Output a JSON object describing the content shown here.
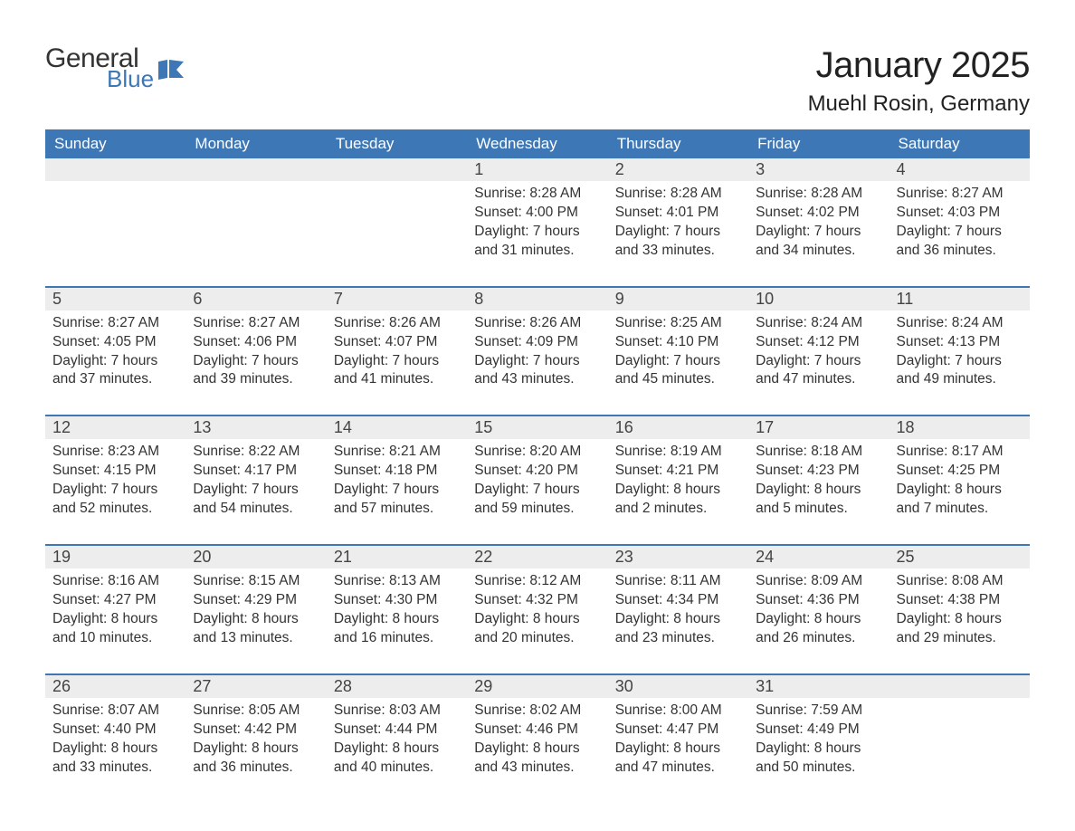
{
  "colors": {
    "header_bg": "#3d77b6",
    "header_text": "#ffffff",
    "daynum_bg": "#ededed",
    "week_border": "#3d77b6",
    "body_text": "#333333",
    "logo_blue": "#3d77b6",
    "background": "#ffffff"
  },
  "typography": {
    "month_title_size": 40,
    "location_size": 24,
    "day_header_size": 17,
    "daynum_size": 18,
    "cell_text_size": 15.5,
    "font_family": "Arial"
  },
  "logo": {
    "line1": "General",
    "line2": "Blue"
  },
  "title": {
    "month": "January 2025",
    "location": "Muehl Rosin, Germany"
  },
  "day_headers": [
    "Sunday",
    "Monday",
    "Tuesday",
    "Wednesday",
    "Thursday",
    "Friday",
    "Saturday"
  ],
  "weeks": [
    [
      {
        "n": "",
        "l1": "",
        "l2": "",
        "l3": "",
        "l4": ""
      },
      {
        "n": "",
        "l1": "",
        "l2": "",
        "l3": "",
        "l4": ""
      },
      {
        "n": "",
        "l1": "",
        "l2": "",
        "l3": "",
        "l4": ""
      },
      {
        "n": "1",
        "l1": "Sunrise: 8:28 AM",
        "l2": "Sunset: 4:00 PM",
        "l3": "Daylight: 7 hours",
        "l4": "and 31 minutes."
      },
      {
        "n": "2",
        "l1": "Sunrise: 8:28 AM",
        "l2": "Sunset: 4:01 PM",
        "l3": "Daylight: 7 hours",
        "l4": "and 33 minutes."
      },
      {
        "n": "3",
        "l1": "Sunrise: 8:28 AM",
        "l2": "Sunset: 4:02 PM",
        "l3": "Daylight: 7 hours",
        "l4": "and 34 minutes."
      },
      {
        "n": "4",
        "l1": "Sunrise: 8:27 AM",
        "l2": "Sunset: 4:03 PM",
        "l3": "Daylight: 7 hours",
        "l4": "and 36 minutes."
      }
    ],
    [
      {
        "n": "5",
        "l1": "Sunrise: 8:27 AM",
        "l2": "Sunset: 4:05 PM",
        "l3": "Daylight: 7 hours",
        "l4": "and 37 minutes."
      },
      {
        "n": "6",
        "l1": "Sunrise: 8:27 AM",
        "l2": "Sunset: 4:06 PM",
        "l3": "Daylight: 7 hours",
        "l4": "and 39 minutes."
      },
      {
        "n": "7",
        "l1": "Sunrise: 8:26 AM",
        "l2": "Sunset: 4:07 PM",
        "l3": "Daylight: 7 hours",
        "l4": "and 41 minutes."
      },
      {
        "n": "8",
        "l1": "Sunrise: 8:26 AM",
        "l2": "Sunset: 4:09 PM",
        "l3": "Daylight: 7 hours",
        "l4": "and 43 minutes."
      },
      {
        "n": "9",
        "l1": "Sunrise: 8:25 AM",
        "l2": "Sunset: 4:10 PM",
        "l3": "Daylight: 7 hours",
        "l4": "and 45 minutes."
      },
      {
        "n": "10",
        "l1": "Sunrise: 8:24 AM",
        "l2": "Sunset: 4:12 PM",
        "l3": "Daylight: 7 hours",
        "l4": "and 47 minutes."
      },
      {
        "n": "11",
        "l1": "Sunrise: 8:24 AM",
        "l2": "Sunset: 4:13 PM",
        "l3": "Daylight: 7 hours",
        "l4": "and 49 minutes."
      }
    ],
    [
      {
        "n": "12",
        "l1": "Sunrise: 8:23 AM",
        "l2": "Sunset: 4:15 PM",
        "l3": "Daylight: 7 hours",
        "l4": "and 52 minutes."
      },
      {
        "n": "13",
        "l1": "Sunrise: 8:22 AM",
        "l2": "Sunset: 4:17 PM",
        "l3": "Daylight: 7 hours",
        "l4": "and 54 minutes."
      },
      {
        "n": "14",
        "l1": "Sunrise: 8:21 AM",
        "l2": "Sunset: 4:18 PM",
        "l3": "Daylight: 7 hours",
        "l4": "and 57 minutes."
      },
      {
        "n": "15",
        "l1": "Sunrise: 8:20 AM",
        "l2": "Sunset: 4:20 PM",
        "l3": "Daylight: 7 hours",
        "l4": "and 59 minutes."
      },
      {
        "n": "16",
        "l1": "Sunrise: 8:19 AM",
        "l2": "Sunset: 4:21 PM",
        "l3": "Daylight: 8 hours",
        "l4": "and 2 minutes."
      },
      {
        "n": "17",
        "l1": "Sunrise: 8:18 AM",
        "l2": "Sunset: 4:23 PM",
        "l3": "Daylight: 8 hours",
        "l4": "and 5 minutes."
      },
      {
        "n": "18",
        "l1": "Sunrise: 8:17 AM",
        "l2": "Sunset: 4:25 PM",
        "l3": "Daylight: 8 hours",
        "l4": "and 7 minutes."
      }
    ],
    [
      {
        "n": "19",
        "l1": "Sunrise: 8:16 AM",
        "l2": "Sunset: 4:27 PM",
        "l3": "Daylight: 8 hours",
        "l4": "and 10 minutes."
      },
      {
        "n": "20",
        "l1": "Sunrise: 8:15 AM",
        "l2": "Sunset: 4:29 PM",
        "l3": "Daylight: 8 hours",
        "l4": "and 13 minutes."
      },
      {
        "n": "21",
        "l1": "Sunrise: 8:13 AM",
        "l2": "Sunset: 4:30 PM",
        "l3": "Daylight: 8 hours",
        "l4": "and 16 minutes."
      },
      {
        "n": "22",
        "l1": "Sunrise: 8:12 AM",
        "l2": "Sunset: 4:32 PM",
        "l3": "Daylight: 8 hours",
        "l4": "and 20 minutes."
      },
      {
        "n": "23",
        "l1": "Sunrise: 8:11 AM",
        "l2": "Sunset: 4:34 PM",
        "l3": "Daylight: 8 hours",
        "l4": "and 23 minutes."
      },
      {
        "n": "24",
        "l1": "Sunrise: 8:09 AM",
        "l2": "Sunset: 4:36 PM",
        "l3": "Daylight: 8 hours",
        "l4": "and 26 minutes."
      },
      {
        "n": "25",
        "l1": "Sunrise: 8:08 AM",
        "l2": "Sunset: 4:38 PM",
        "l3": "Daylight: 8 hours",
        "l4": "and 29 minutes."
      }
    ],
    [
      {
        "n": "26",
        "l1": "Sunrise: 8:07 AM",
        "l2": "Sunset: 4:40 PM",
        "l3": "Daylight: 8 hours",
        "l4": "and 33 minutes."
      },
      {
        "n": "27",
        "l1": "Sunrise: 8:05 AM",
        "l2": "Sunset: 4:42 PM",
        "l3": "Daylight: 8 hours",
        "l4": "and 36 minutes."
      },
      {
        "n": "28",
        "l1": "Sunrise: 8:03 AM",
        "l2": "Sunset: 4:44 PM",
        "l3": "Daylight: 8 hours",
        "l4": "and 40 minutes."
      },
      {
        "n": "29",
        "l1": "Sunrise: 8:02 AM",
        "l2": "Sunset: 4:46 PM",
        "l3": "Daylight: 8 hours",
        "l4": "and 43 minutes."
      },
      {
        "n": "30",
        "l1": "Sunrise: 8:00 AM",
        "l2": "Sunset: 4:47 PM",
        "l3": "Daylight: 8 hours",
        "l4": "and 47 minutes."
      },
      {
        "n": "31",
        "l1": "Sunrise: 7:59 AM",
        "l2": "Sunset: 4:49 PM",
        "l3": "Daylight: 8 hours",
        "l4": "and 50 minutes."
      },
      {
        "n": "",
        "l1": "",
        "l2": "",
        "l3": "",
        "l4": ""
      }
    ]
  ]
}
